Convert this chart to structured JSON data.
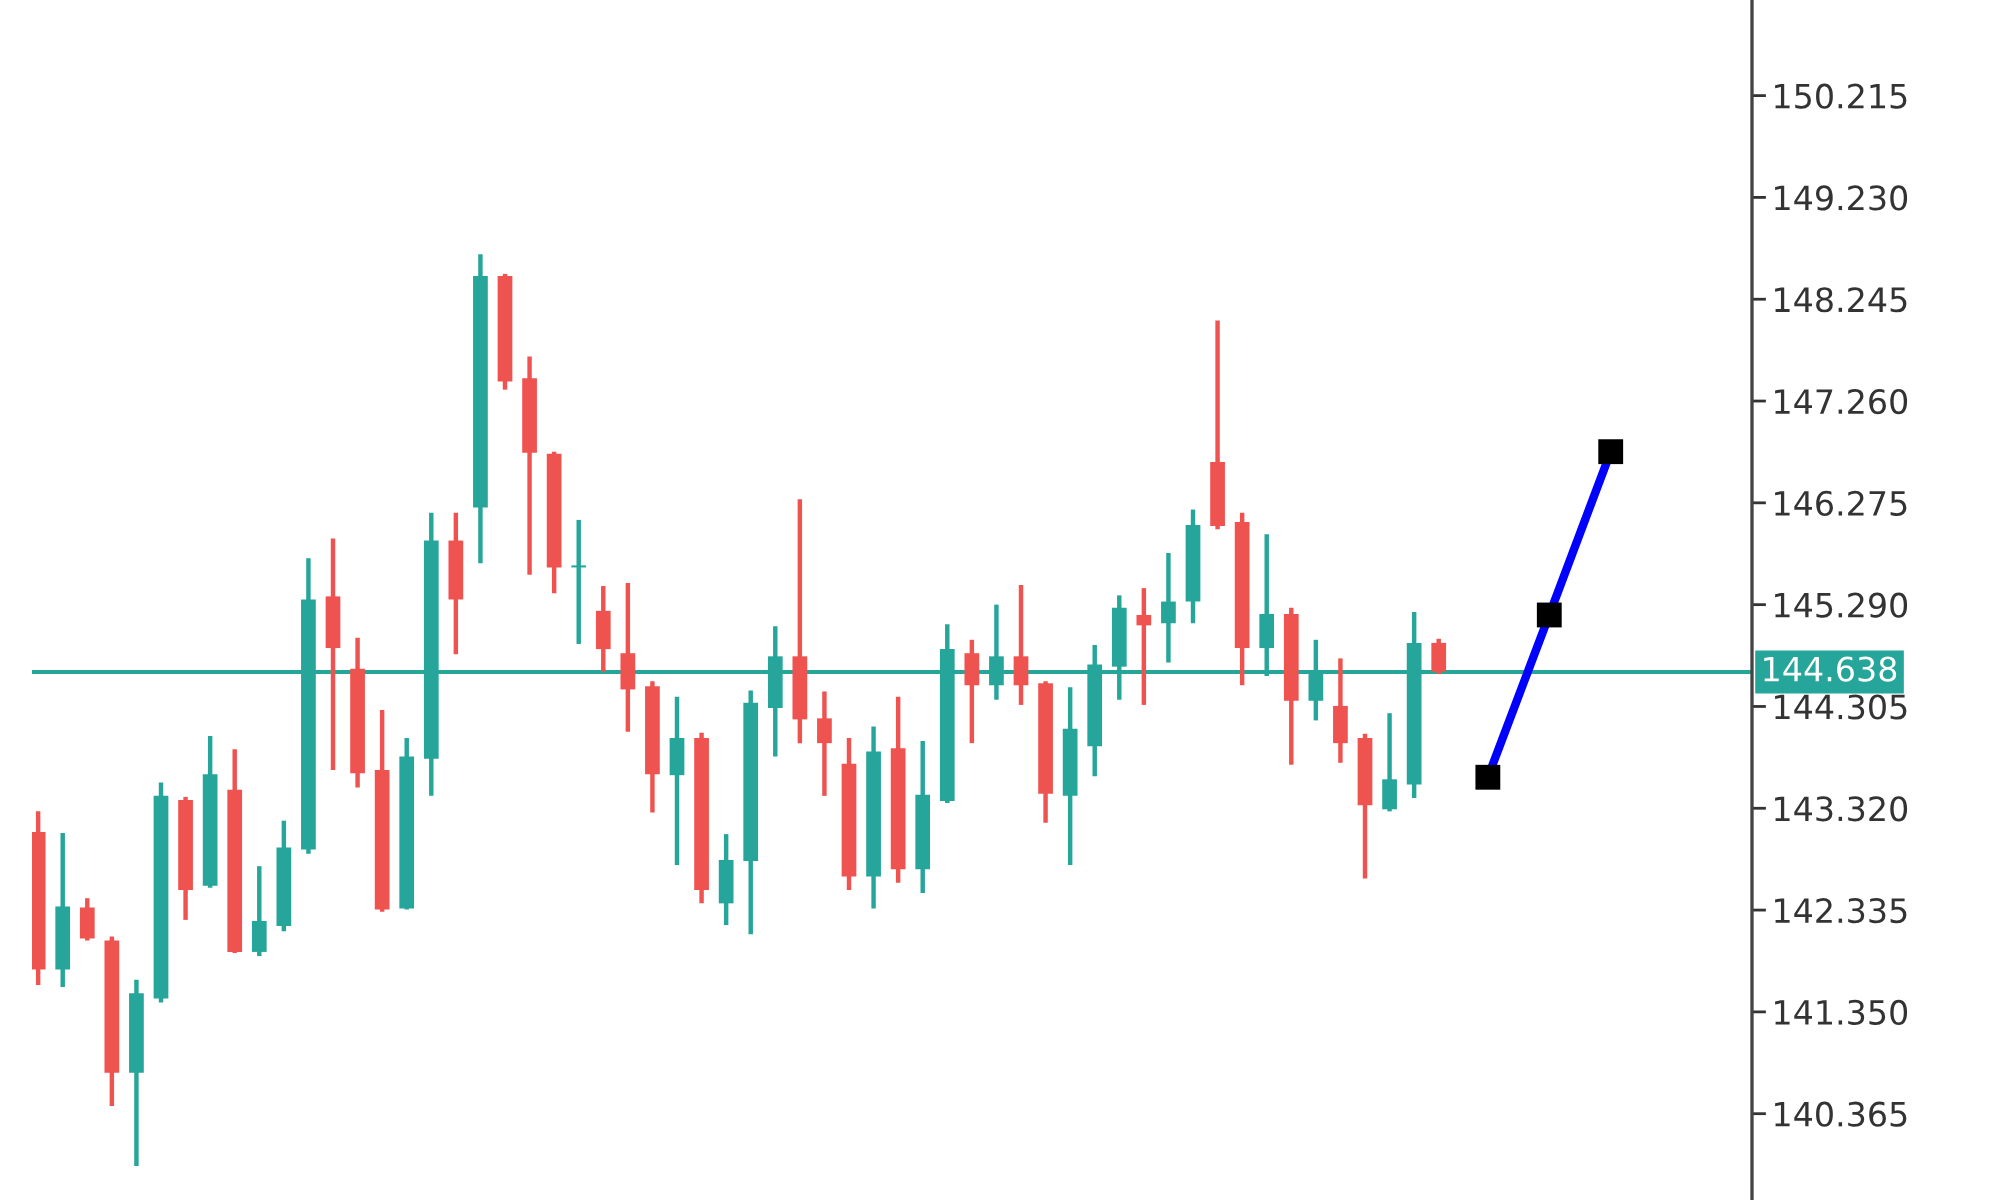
{
  "chart_data": {
    "type": "candlestick",
    "categories": [
      null,
      null,
      null,
      null,
      null,
      null,
      null,
      null,
      null,
      null,
      null,
      null,
      null,
      null,
      null,
      null,
      null,
      null,
      null,
      null,
      null,
      null,
      null,
      null,
      null,
      null,
      null,
      null,
      null,
      null,
      null,
      null,
      null,
      null,
      null,
      null,
      null,
      null,
      null,
      null,
      null,
      null,
      null,
      null,
      null,
      null,
      null,
      null,
      null,
      null,
      null,
      null,
      null,
      null,
      null,
      null,
      null,
      null,
      null,
      null,
      null,
      null,
      null,
      null,
      null,
      null,
      null,
      null,
      null,
      null,
      null,
      null,
      null,
      null,
      null,
      null,
      null,
      null,
      null,
      null,
      null,
      null,
      null,
      null,
      null,
      null,
      null,
      null,
      null,
      null,
      null,
      null,
      null,
      null,
      null,
      null,
      null,
      null,
      null,
      null,
      null,
      null,
      null,
      null,
      null,
      null,
      null,
      null,
      null,
      null,
      null,
      null,
      null,
      null,
      null,
      null,
      null,
      null,
      null,
      null,
      null,
      null,
      null,
      null,
      null,
      null,
      null,
      null,
      null,
      null,
      null,
      null,
      null,
      null,
      null,
      null,
      null,
      null,
      null,
      null
    ],
    "ohlc": [
      [
        143.09,
        143.29,
        141.61,
        141.76
      ],
      null,
      [
        141.76,
        143.08,
        141.59,
        142.37
      ],
      null,
      [
        142.36,
        142.45,
        142.04,
        142.06
      ],
      null,
      [
        142.04,
        142.08,
        140.44,
        140.76
      ],
      null,
      [
        140.76,
        141.66,
        139.86,
        141.53
      ],
      null,
      [
        141.48,
        143.57,
        141.44,
        143.44
      ],
      null,
      [
        143.4,
        143.43,
        142.24,
        142.53
      ],
      null,
      [
        142.57,
        144.02,
        142.55,
        143.65
      ],
      null,
      [
        143.5,
        143.89,
        141.92,
        141.93
      ],
      null,
      [
        141.93,
        142.76,
        141.89,
        142.23
      ],
      null,
      [
        142.18,
        143.2,
        142.13,
        142.94
      ],
      null,
      [
        142.92,
        145.74,
        142.88,
        145.34
      ],
      null,
      [
        145.37,
        145.93,
        143.69,
        144.87
      ],
      null,
      [
        144.67,
        144.97,
        143.52,
        143.66
      ],
      null,
      [
        143.69,
        144.27,
        142.32,
        142.34
      ],
      null,
      [
        142.35,
        144.0,
        142.34,
        143.82
      ],
      null,
      [
        143.8,
        146.18,
        143.44,
        145.91
      ],
      null,
      [
        145.91,
        146.18,
        144.81,
        145.34
      ],
      null,
      [
        146.23,
        148.68,
        145.69,
        148.47
      ],
      null,
      [
        148.47,
        148.49,
        147.37,
        147.45
      ],
      null,
      [
        147.48,
        147.69,
        145.58,
        146.76
      ],
      null,
      [
        146.75,
        146.77,
        145.4,
        145.65
      ],
      null,
      [
        145.65,
        146.11,
        144.91,
        145.67
      ],
      null,
      [
        145.23,
        145.47,
        144.64,
        144.86
      ],
      null,
      [
        144.82,
        145.5,
        144.06,
        144.47
      ],
      null,
      [
        144.5,
        144.55,
        143.28,
        143.65
      ],
      null,
      [
        143.64,
        144.4,
        142.77,
        144.0
      ],
      null,
      [
        144.0,
        144.05,
        142.4,
        142.53
      ],
      null,
      [
        142.4,
        143.07,
        142.19,
        142.82
      ],
      null,
      [
        142.81,
        144.46,
        142.1,
        144.34
      ],
      null,
      [
        144.29,
        145.08,
        143.82,
        144.79
      ],
      null,
      [
        144.79,
        146.31,
        143.95,
        144.18
      ],
      null,
      [
        144.19,
        144.45,
        143.44,
        143.95
      ],
      null,
      [
        143.75,
        144.0,
        142.53,
        142.66
      ],
      null,
      [
        142.66,
        144.11,
        142.35,
        143.87
      ],
      null,
      [
        143.9,
        144.4,
        142.6,
        142.73
      ],
      null,
      [
        142.73,
        143.97,
        142.5,
        143.45
      ],
      null,
      [
        143.39,
        145.1,
        143.37,
        144.86
      ],
      null,
      [
        144.82,
        144.95,
        143.95,
        144.51
      ],
      null,
      [
        144.51,
        145.29,
        144.37,
        144.79
      ],
      null,
      [
        144.79,
        145.48,
        144.32,
        144.51
      ],
      null,
      [
        144.53,
        144.55,
        143.18,
        143.46
      ],
      null,
      [
        143.44,
        144.49,
        142.77,
        144.09
      ],
      null,
      [
        143.92,
        144.9,
        143.63,
        144.71
      ],
      null,
      [
        144.69,
        145.38,
        144.37,
        145.26
      ],
      null,
      [
        145.19,
        145.45,
        144.32,
        145.09
      ],
      null,
      [
        145.11,
        145.79,
        144.73,
        145.32
      ],
      null,
      [
        145.32,
        146.21,
        145.11,
        146.06
      ],
      null,
      [
        146.67,
        148.04,
        146.02,
        146.05
      ],
      null,
      [
        146.09,
        146.18,
        144.51,
        144.87
      ],
      null,
      [
        144.87,
        145.97,
        144.6,
        145.2
      ],
      null,
      [
        145.2,
        145.26,
        143.74,
        144.36
      ],
      null,
      [
        144.36,
        144.95,
        144.17,
        144.63
      ],
      null,
      [
        144.31,
        144.77,
        143.76,
        143.95
      ],
      null,
      [
        144.0,
        144.04,
        142.64,
        143.35
      ],
      null,
      [
        143.31,
        144.24,
        143.29,
        143.6
      ],
      null,
      [
        143.55,
        145.22,
        143.42,
        144.92
      ],
      null,
      [
        144.92,
        144.96,
        144.62,
        144.64
      ],
      null,
      null,
      null,
      null,
      null,
      null,
      null,
      null,
      null,
      null,
      null,
      null,
      null,
      null,
      null,
      null,
      null,
      null,
      null,
      null,
      null,
      null,
      null,
      null,
      null
    ],
    "colors": [
      "#ef5350",
      null,
      "#26a69a",
      null,
      "#ef5350",
      null,
      "#ef5350",
      null,
      "#26a69a",
      null,
      "#26a69a",
      null,
      "#ef5350",
      null,
      "#26a69a",
      null,
      "#ef5350",
      null,
      "#26a69a",
      null,
      "#26a69a",
      null,
      "#26a69a",
      null,
      "#ef5350",
      null,
      "#ef5350",
      null,
      "#ef5350",
      null,
      "#26a69a",
      null,
      "#26a69a",
      null,
      "#ef5350",
      null,
      "#26a69a",
      null,
      "#ef5350",
      null,
      "#ef5350",
      null,
      "#ef5350",
      null,
      "#26a69a",
      null,
      "#ef5350",
      null,
      "#ef5350",
      null,
      "#ef5350",
      null,
      "#26a69a",
      null,
      "#ef5350",
      null,
      "#26a69a",
      null,
      "#26a69a",
      null,
      "#26a69a",
      null,
      "#ef5350",
      null,
      "#ef5350",
      null,
      "#ef5350",
      null,
      "#26a69a",
      null,
      "#ef5350",
      null,
      "#26a69a",
      null,
      "#26a69a",
      null,
      "#ef5350",
      null,
      "#26a69a",
      null,
      "#ef5350",
      null,
      "#ef5350",
      null,
      "#26a69a",
      null,
      "#26a69a",
      null,
      "#26a69a",
      null,
      "#ef5350",
      null,
      "#26a69a",
      null,
      "#26a69a",
      null,
      "#ef5350",
      null,
      "#ef5350",
      null,
      "#26a69a",
      null,
      "#ef5350",
      null,
      "#26a69a",
      null,
      "#ef5350",
      null,
      "#ef5350",
      null,
      "#26a69a",
      null,
      "#26a69a",
      null,
      "#ef5350",
      null,
      null,
      null,
      null,
      null,
      null,
      null,
      null,
      null,
      null,
      null,
      null,
      null,
      null,
      null,
      null,
      null,
      null,
      null,
      null,
      null,
      null,
      null,
      null,
      null
    ],
    "series": [
      {
        "type": "line",
        "color": "#0000ff",
        "values": [
          null,
          null,
          null,
          null,
          null,
          null,
          null,
          null,
          null,
          null,
          null,
          null,
          null,
          null,
          null,
          null,
          null,
          null,
          null,
          null,
          null,
          null,
          null,
          null,
          null,
          null,
          null,
          null,
          null,
          null,
          null,
          null,
          null,
          null,
          null,
          null,
          null,
          null,
          null,
          null,
          null,
          null,
          null,
          null,
          null,
          null,
          null,
          null,
          null,
          null,
          null,
          null,
          null,
          null,
          null,
          null,
          null,
          null,
          null,
          null,
          null,
          null,
          null,
          null,
          null,
          null,
          null,
          null,
          null,
          null,
          null,
          null,
          null,
          null,
          null,
          null,
          null,
          null,
          null,
          null,
          null,
          null,
          null,
          null,
          null,
          null,
          null,
          null,
          null,
          null,
          null,
          null,
          null,
          null,
          null,
          null,
          null,
          null,
          null,
          null,
          null,
          null,
          null,
          null,
          null,
          null,
          null,
          null,
          null,
          null,
          null,
          null,
          null,
          null,
          null,
          null,
          null,
          null,
          143.62,
          null,
          null,
          null,
          null,
          145.19,
          null,
          null,
          null,
          null,
          146.77,
          null,
          null,
          null,
          null,
          null,
          null,
          null,
          null,
          null,
          null,
          null
        ],
        "colors": [
          null,
          null,
          null,
          null,
          null,
          null,
          null,
          null,
          null,
          null,
          null,
          null,
          null,
          null,
          null,
          null,
          null,
          null,
          null,
          null,
          null,
          null,
          null,
          null,
          null,
          null,
          null,
          null,
          null,
          null,
          null,
          null,
          null,
          null,
          null,
          null,
          null,
          null,
          null,
          null,
          null,
          null,
          null,
          null,
          null,
          null,
          null,
          null,
          null,
          null,
          null,
          null,
          null,
          null,
          null,
          null,
          null,
          null,
          null,
          null,
          null,
          null,
          null,
          null,
          null,
          null,
          null,
          null,
          null,
          null,
          null,
          null,
          null,
          null,
          null,
          null,
          null,
          null,
          null,
          null,
          null,
          null,
          null,
          null,
          null,
          null,
          null,
          null,
          null,
          null,
          null,
          null,
          null,
          null,
          null,
          null,
          null,
          null,
          null,
          null,
          null,
          null,
          null,
          null,
          null,
          null,
          null,
          null,
          null,
          null,
          null,
          null,
          null,
          null,
          null,
          null,
          null,
          null,
          "#000000",
          null,
          null,
          null,
          null,
          "#000000",
          null,
          null,
          null,
          null,
          "#000000",
          null,
          null,
          null,
          null,
          null,
          null,
          null,
          null,
          null,
          null,
          null
        ]
      }
    ],
    "marker": "square",
    "line_style": "solid",
    "ref_lines": [
      {
        "axis": "y",
        "value": 144.638,
        "label": "144.638",
        "color": "#26a69a",
        "line_style": "solid"
      }
    ],
    "ylim": [
      139.53,
      151.14
    ],
    "yticks": [
      140.365,
      {
        "value": 141.35,
        "label": "141.350"
      },
      142.335,
      {
        "value": 143.32,
        "label": "143.320"
      },
      144.305,
      {
        "value": 145.29,
        "label": "145.290"
      },
      146.275,
      {
        "value": 147.26,
        "label": "147.260"
      },
      148.245,
      {
        "value": 149.23,
        "label": "149.230"
      },
      150.215
    ],
    "tick_labels": "y"
  }
}
